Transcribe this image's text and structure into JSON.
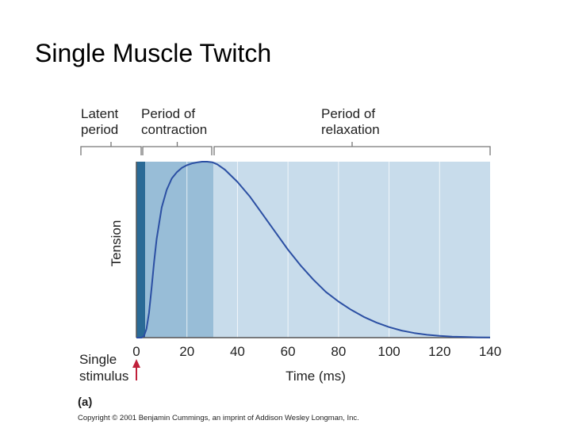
{
  "page": {
    "title": "Single Muscle Twitch",
    "panel_label": "(a)",
    "copyright": "Copyright © 2001 Benjamin Cummings, an imprint of Addison Wesley Longman, Inc."
  },
  "colors": {
    "latent": "#2a6a96",
    "contraction": "#98bdd7",
    "relaxation": "#c8dceb",
    "curve": "#2b4fa3",
    "grid": "#ffffff",
    "axis": "#555555",
    "bracket": "#777777",
    "arrow": "#c0203a"
  },
  "chart_data": {
    "type": "line",
    "title": "Single Muscle Twitch",
    "xlabel": "Time (ms)",
    "ylabel": "Tension",
    "xlim": [
      0,
      140
    ],
    "ylim": [
      0,
      1
    ],
    "x_ticks": [
      0,
      20,
      40,
      60,
      80,
      100,
      120,
      140
    ],
    "grid": true,
    "series": [
      {
        "name": "Tension",
        "x": [
          0,
          2,
          3,
          4,
          5,
          6,
          7,
          8,
          10,
          12,
          14,
          16,
          18,
          20,
          22,
          24,
          26,
          28,
          30,
          32,
          35,
          40,
          45,
          50,
          55,
          60,
          65,
          70,
          75,
          80,
          85,
          90,
          95,
          100,
          105,
          110,
          115,
          120,
          125,
          130,
          135,
          140
        ],
        "y": [
          0,
          0,
          0.01,
          0.05,
          0.14,
          0.28,
          0.43,
          0.56,
          0.74,
          0.84,
          0.905,
          0.94,
          0.965,
          0.98,
          0.99,
          0.996,
          1.0,
          1.0,
          0.997,
          0.985,
          0.955,
          0.885,
          0.8,
          0.7,
          0.6,
          0.5,
          0.41,
          0.33,
          0.26,
          0.205,
          0.158,
          0.118,
          0.086,
          0.06,
          0.04,
          0.026,
          0.016,
          0.01,
          0.006,
          0.004,
          0.002,
          0.001
        ]
      }
    ],
    "phases": [
      {
        "name": "Latent period",
        "start": 0,
        "end": 3.5
      },
      {
        "name": "Period of contraction",
        "start": 3.5,
        "end": 30.5
      },
      {
        "name": "Period of relaxation",
        "start": 30.5,
        "end": 140
      }
    ],
    "phase_labels": [
      {
        "line1": "Latent",
        "line2": "period"
      },
      {
        "line1": "Period of",
        "line2": "contraction"
      },
      {
        "line1": "Period of",
        "line2": "relaxation"
      }
    ],
    "stimulus": {
      "x": 0,
      "line1": "Single",
      "line2": "stimulus"
    }
  }
}
